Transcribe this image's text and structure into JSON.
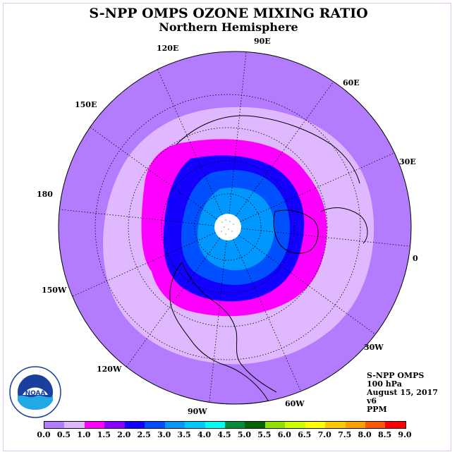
{
  "header": {
    "title": "S-NPP OMPS OZONE MIXING RATIO",
    "subtitle": "Northern Hemisphere"
  },
  "longitude_labels": [
    "90E",
    "60E",
    "30E",
    "0",
    "30W",
    "60W",
    "90W",
    "120W",
    "150W",
    "180",
    "150E",
    "120E"
  ],
  "info": {
    "instrument": "S-NPP OMPS",
    "level": "100 hPa",
    "date": "August 15, 2017",
    "version": "v6",
    "units": "PPM"
  },
  "colorbar": {
    "colors": [
      "#b37cff",
      "#dfb8ff",
      "#ff00ff",
      "#8a00ff",
      "#1400ff",
      "#0050ff",
      "#0098ff",
      "#00c8ff",
      "#00fff0",
      "#008c3a",
      "#006400",
      "#90e000",
      "#ccff00",
      "#ffff00",
      "#ffc800",
      "#ffa000",
      "#ff5a00",
      "#ff0000",
      "#8b5a2b"
    ],
    "ticks": [
      "0.0",
      "0.5",
      "1.0",
      "1.5",
      "2.0",
      "2.5",
      "3.0",
      "3.5",
      "4.0",
      "4.5",
      "5.0",
      "5.5",
      "6.0",
      "6.5",
      "7.0",
      "7.5",
      "8.0",
      "8.5",
      "9.0"
    ]
  },
  "logo": {
    "text": "NOAA",
    "ring_text": "NATIONAL OCEANIC AND ATMOSPHERIC ADMINISTRATION · U.S. DEPARTMENT OF COMMERCE"
  },
  "map_colors": {
    "outer": "#b37cff",
    "band_05_10": "#dfb8ff",
    "band_10_15": "#ff00ff",
    "band_15_20": "#1400ff",
    "band_20_25": "#0050ff",
    "band_25_30": "#0098ff",
    "pole": "#ffffff"
  }
}
